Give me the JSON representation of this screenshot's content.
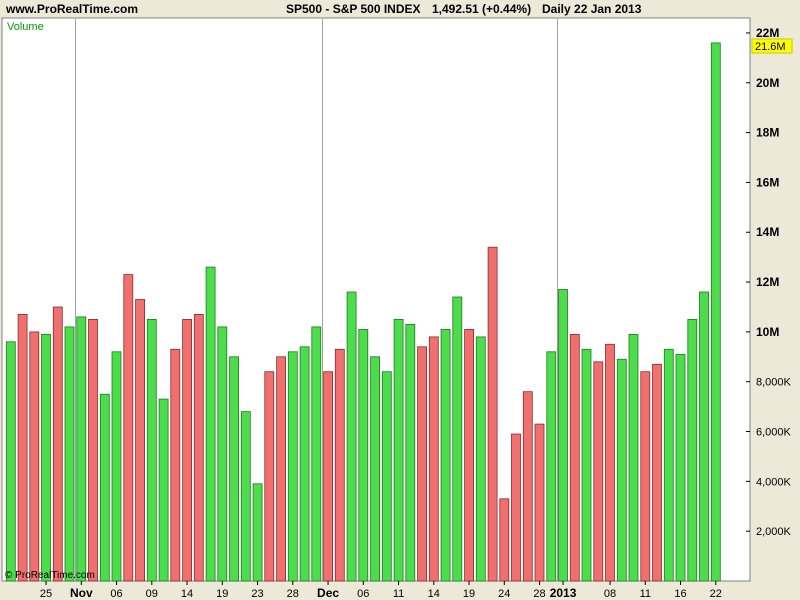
{
  "header": {
    "site": "www.ProRealTime.com",
    "instrument": "SP500 - S&P 500 INDEX",
    "price_change": "1,492.51 (+0.44%)",
    "period": "Daily  22 Jan 2013"
  },
  "chart_data": {
    "type": "bar",
    "panel_label": "Volume",
    "copyright": "© ProRealTime.com",
    "last_value_label": "21.6M",
    "ylim": [
      0,
      22600000
    ],
    "y_ticks": [
      {
        "value": 2000000,
        "label": "2,000K"
      },
      {
        "value": 4000000,
        "label": "4,000K"
      },
      {
        "value": 6000000,
        "label": "6,000K"
      },
      {
        "value": 8000000,
        "label": "8,000K"
      },
      {
        "value": 10000000,
        "label": "10M"
      },
      {
        "value": 12000000,
        "label": "12M"
      },
      {
        "value": 14000000,
        "label": "14M"
      },
      {
        "value": 16000000,
        "label": "16M"
      },
      {
        "value": 18000000,
        "label": "18M"
      },
      {
        "value": 20000000,
        "label": "20M"
      },
      {
        "value": 22000000,
        "label": "22M"
      }
    ],
    "x_ticks": [
      {
        "index": 3,
        "label": "25"
      },
      {
        "index": 6,
        "label": "Nov"
      },
      {
        "index": 9,
        "label": "06"
      },
      {
        "index": 12,
        "label": "09"
      },
      {
        "index": 15,
        "label": "14"
      },
      {
        "index": 18,
        "label": "19"
      },
      {
        "index": 21,
        "label": "23"
      },
      {
        "index": 24,
        "label": "28"
      },
      {
        "index": 27,
        "label": "Dec"
      },
      {
        "index": 30,
        "label": "06"
      },
      {
        "index": 33,
        "label": "11"
      },
      {
        "index": 36,
        "label": "14"
      },
      {
        "index": 39,
        "label": "19"
      },
      {
        "index": 42,
        "label": "24"
      },
      {
        "index": 45,
        "label": "28"
      },
      {
        "index": 47,
        "label": "2013"
      },
      {
        "index": 51,
        "label": "08"
      },
      {
        "index": 54,
        "label": "11"
      },
      {
        "index": 57,
        "label": "16"
      },
      {
        "index": 60,
        "label": "22"
      }
    ],
    "month_separators": [
      6,
      27,
      47
    ],
    "colors": {
      "up": "#4cdc4c",
      "down": "#f07070"
    },
    "bars": [
      {
        "value": 9600000,
        "dir": "up"
      },
      {
        "value": 10700000,
        "dir": "down"
      },
      {
        "value": 10000000,
        "dir": "down"
      },
      {
        "value": 9900000,
        "dir": "up"
      },
      {
        "value": 11000000,
        "dir": "down"
      },
      {
        "value": 10200000,
        "dir": "up"
      },
      {
        "value": 10600000,
        "dir": "up"
      },
      {
        "value": 10500000,
        "dir": "down"
      },
      {
        "value": 7500000,
        "dir": "up"
      },
      {
        "value": 9200000,
        "dir": "up"
      },
      {
        "value": 12300000,
        "dir": "down"
      },
      {
        "value": 11300000,
        "dir": "down"
      },
      {
        "value": 10500000,
        "dir": "up"
      },
      {
        "value": 7300000,
        "dir": "up"
      },
      {
        "value": 9300000,
        "dir": "down"
      },
      {
        "value": 10500000,
        "dir": "down"
      },
      {
        "value": 10700000,
        "dir": "down"
      },
      {
        "value": 12600000,
        "dir": "up"
      },
      {
        "value": 10200000,
        "dir": "up"
      },
      {
        "value": 9000000,
        "dir": "up"
      },
      {
        "value": 6800000,
        "dir": "up"
      },
      {
        "value": 3900000,
        "dir": "up"
      },
      {
        "value": 8400000,
        "dir": "down"
      },
      {
        "value": 9000000,
        "dir": "down"
      },
      {
        "value": 9200000,
        "dir": "up"
      },
      {
        "value": 9400000,
        "dir": "up"
      },
      {
        "value": 10200000,
        "dir": "up"
      },
      {
        "value": 8400000,
        "dir": "down"
      },
      {
        "value": 9300000,
        "dir": "down"
      },
      {
        "value": 11600000,
        "dir": "up"
      },
      {
        "value": 10100000,
        "dir": "up"
      },
      {
        "value": 9000000,
        "dir": "up"
      },
      {
        "value": 8400000,
        "dir": "up"
      },
      {
        "value": 10500000,
        "dir": "up"
      },
      {
        "value": 10300000,
        "dir": "up"
      },
      {
        "value": 9400000,
        "dir": "down"
      },
      {
        "value": 9800000,
        "dir": "down"
      },
      {
        "value": 10100000,
        "dir": "up"
      },
      {
        "value": 11400000,
        "dir": "up"
      },
      {
        "value": 10100000,
        "dir": "down"
      },
      {
        "value": 9800000,
        "dir": "up"
      },
      {
        "value": 13400000,
        "dir": "down"
      },
      {
        "value": 3300000,
        "dir": "down"
      },
      {
        "value": 5900000,
        "dir": "down"
      },
      {
        "value": 7600000,
        "dir": "down"
      },
      {
        "value": 6300000,
        "dir": "down"
      },
      {
        "value": 9200000,
        "dir": "up"
      },
      {
        "value": 11700000,
        "dir": "up"
      },
      {
        "value": 9900000,
        "dir": "down"
      },
      {
        "value": 9300000,
        "dir": "up"
      },
      {
        "value": 8800000,
        "dir": "down"
      },
      {
        "value": 9500000,
        "dir": "down"
      },
      {
        "value": 8900000,
        "dir": "up"
      },
      {
        "value": 9900000,
        "dir": "up"
      },
      {
        "value": 8400000,
        "dir": "down"
      },
      {
        "value": 8700000,
        "dir": "down"
      },
      {
        "value": 9300000,
        "dir": "up"
      },
      {
        "value": 9100000,
        "dir": "up"
      },
      {
        "value": 10500000,
        "dir": "up"
      },
      {
        "value": 11600000,
        "dir": "up"
      },
      {
        "value": 21600000,
        "dir": "up"
      }
    ]
  }
}
